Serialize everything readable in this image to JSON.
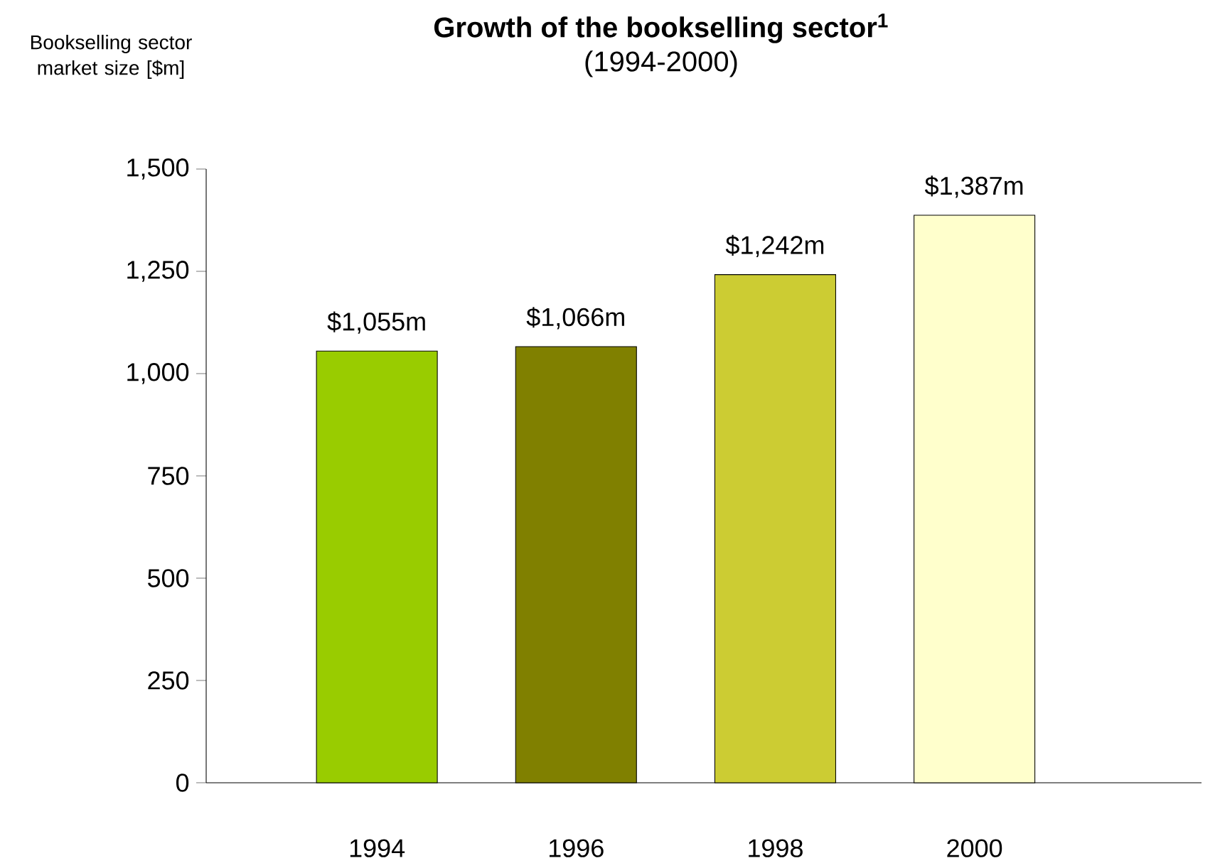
{
  "chart_data": {
    "type": "bar",
    "title": "Growth of the bookselling sector$^{1}$",
    "subtitle": "(1994-2000)",
    "ylabel": "Bookselling sector market size [$m]",
    "categories": [
      "1994",
      "1996",
      "1998",
      "2000"
    ],
    "values": [
      1055,
      1066,
      1242,
      1387
    ],
    "colors": [
      "#99cc00",
      "#808000",
      "#cccc33",
      "#ffffcc"
    ],
    "value_labels": [
      "$1,055m",
      "$1,066m",
      "$1,242m",
      "$1,387m"
    ],
    "ylim": [
      0,
      1500
    ],
    "yticks": [
      0,
      250,
      500,
      750,
      {
        "value": 1000,
        "label": "1,000"
      },
      {
        "value": 1250,
        "label": "1,250"
      },
      {
        "value": 1500,
        "label": "1,500"
      }
    ]
  }
}
